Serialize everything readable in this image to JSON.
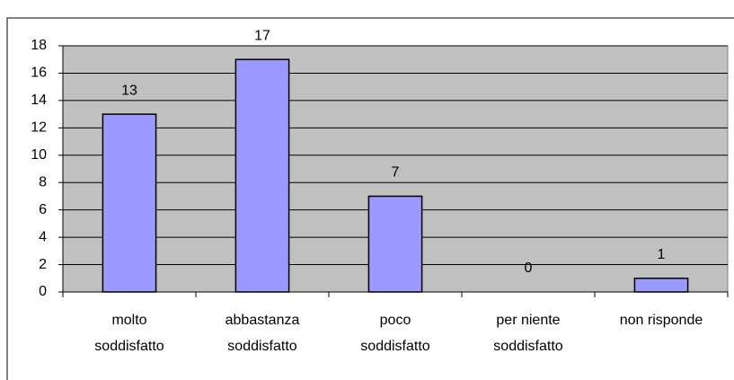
{
  "chart_data": {
    "type": "bar",
    "categories": [
      "molto\nsoddisfatto",
      "abbastanza\nsoddisfatto",
      "poco\nsoddisfatto",
      "per niente\nsoddisfatto",
      "non risponde"
    ],
    "values": [
      13,
      17,
      7,
      0,
      1
    ],
    "color": "#9999ff",
    "ylim": [
      0,
      18
    ],
    "yticks": [
      0,
      2,
      4,
      6,
      8,
      10,
      12,
      14,
      16,
      18
    ],
    "grid": true
  }
}
